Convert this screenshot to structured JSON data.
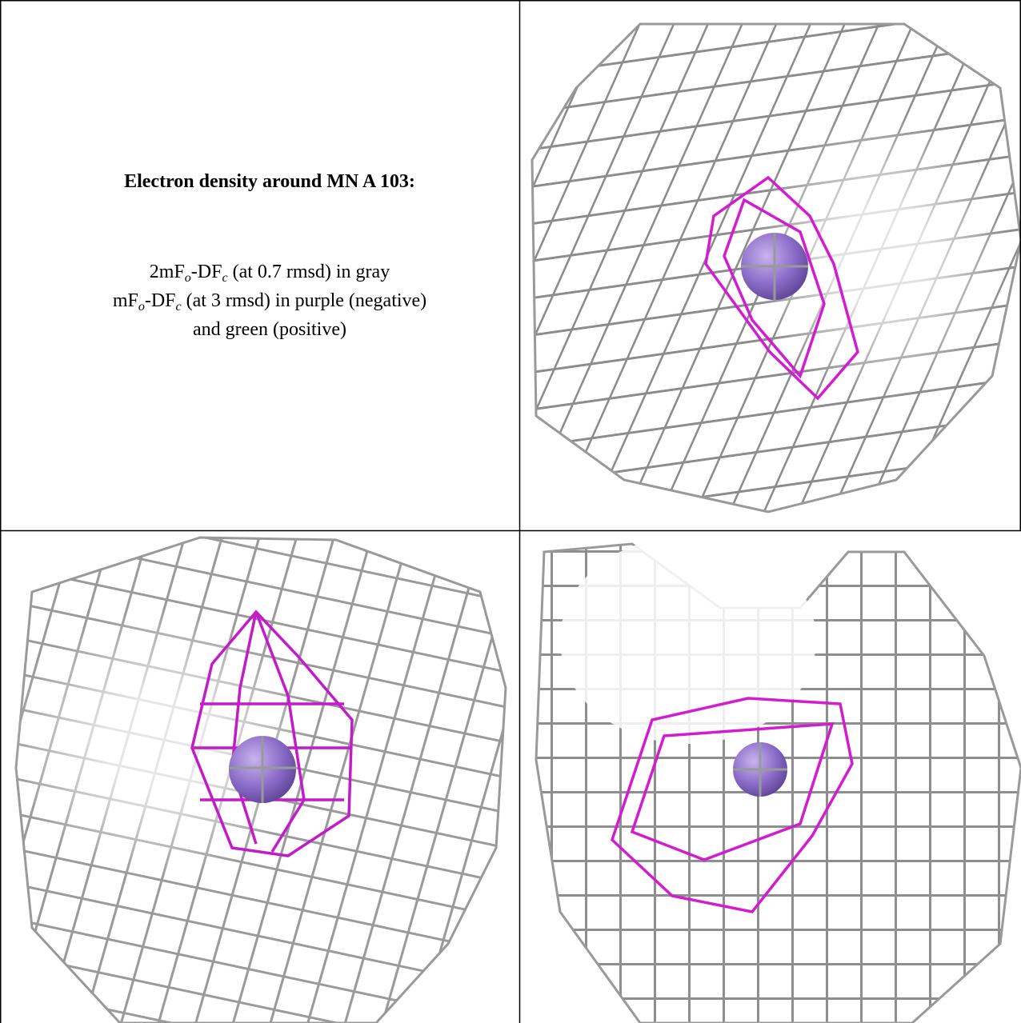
{
  "panel_text": {
    "title": "Electron density around MN A 103:",
    "lines": [
      [
        "2mF",
        "o",
        "-DF",
        "c",
        " (at 0.7 rmsd) in gray"
      ],
      [
        "mF",
        "o",
        "-DF",
        "c",
        " (at 3 rmsd) in purple (negative)"
      ],
      [
        "and green (positive)"
      ]
    ]
  }
}
